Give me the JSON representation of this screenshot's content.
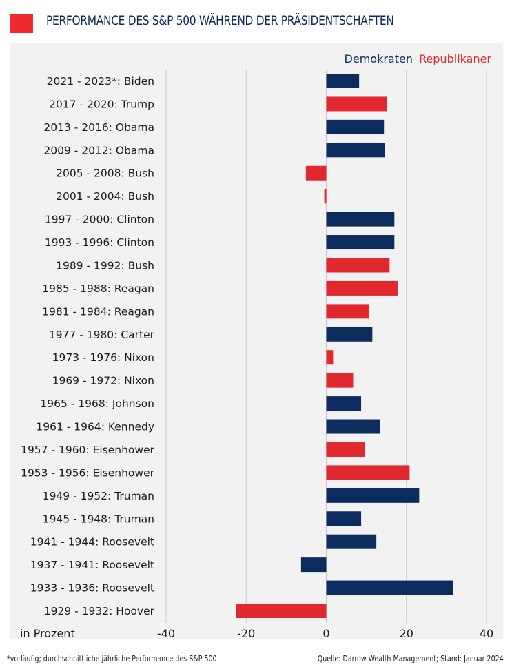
{
  "title": "PERFORMANCE DES S&P 500 WÄHREND DER PRÄSIDENTSCHAFTEN",
  "footnote": "*vorläufig; durchschnittliche jährliche Performance des S&P 500",
  "source": "Quelle: Darrow Wealth Management; Stand: Januar 2024",
  "colors": {
    "Demokraten": "#0d2c5e",
    "Republikaner": "#e1282f",
    "title_box": "#ee2a2e"
  },
  "chart_data": {
    "type": "bar",
    "orientation": "horizontal",
    "xlabel": "in Prozent",
    "xlim": [
      -40,
      40
    ],
    "xticks": [
      "-40",
      "-20",
      "0",
      "20",
      "40"
    ],
    "grid": true,
    "legend": {
      "placement": "top-right",
      "entries": [
        "Demokraten",
        "Republikaner"
      ]
    },
    "categories": [
      "2021 - 2023*: Biden",
      "2017 - 2020: Trump",
      "2013 - 2016: Obama",
      "2009 - 2012: Obama",
      "2005 - 2008: Bush",
      "2001 - 2004: Bush",
      "1997 - 2000: Clinton",
      "1993 - 1996: Clinton",
      "1989 - 1992: Bush",
      "1985 - 1988: Reagan",
      "1981 - 1984: Reagan",
      "1977 - 1980: Carter",
      "1973 - 1976: Nixon",
      "1969 - 1972: Nixon",
      "1965 - 1968: Johnson",
      "1961 - 1964: Kennedy",
      "1957 - 1960: Eisenhower",
      "1953 - 1956: Eisenhower",
      "1949 - 1952: Truman",
      "1945 - 1948: Truman",
      "1941 - 1944: Roosevelt",
      "1937 - 1941: Roosevelt",
      "1933 - 1936: Roosevelt",
      "1929 - 1932: Hoover"
    ],
    "values": [
      8.2,
      15.1,
      14.4,
      14.6,
      -5.1,
      -0.5,
      17.0,
      17.0,
      15.8,
      17.8,
      10.6,
      11.5,
      1.7,
      6.7,
      8.7,
      13.5,
      9.6,
      20.8,
      23.2,
      8.7,
      12.5,
      -6.3,
      31.6,
      -22.6
    ],
    "party": [
      "Demokraten",
      "Republikaner",
      "Demokraten",
      "Demokraten",
      "Republikaner",
      "Republikaner",
      "Demokraten",
      "Demokraten",
      "Republikaner",
      "Republikaner",
      "Republikaner",
      "Demokraten",
      "Republikaner",
      "Republikaner",
      "Demokraten",
      "Demokraten",
      "Republikaner",
      "Republikaner",
      "Demokraten",
      "Demokraten",
      "Demokraten",
      "Demokraten",
      "Demokraten",
      "Republikaner"
    ]
  }
}
